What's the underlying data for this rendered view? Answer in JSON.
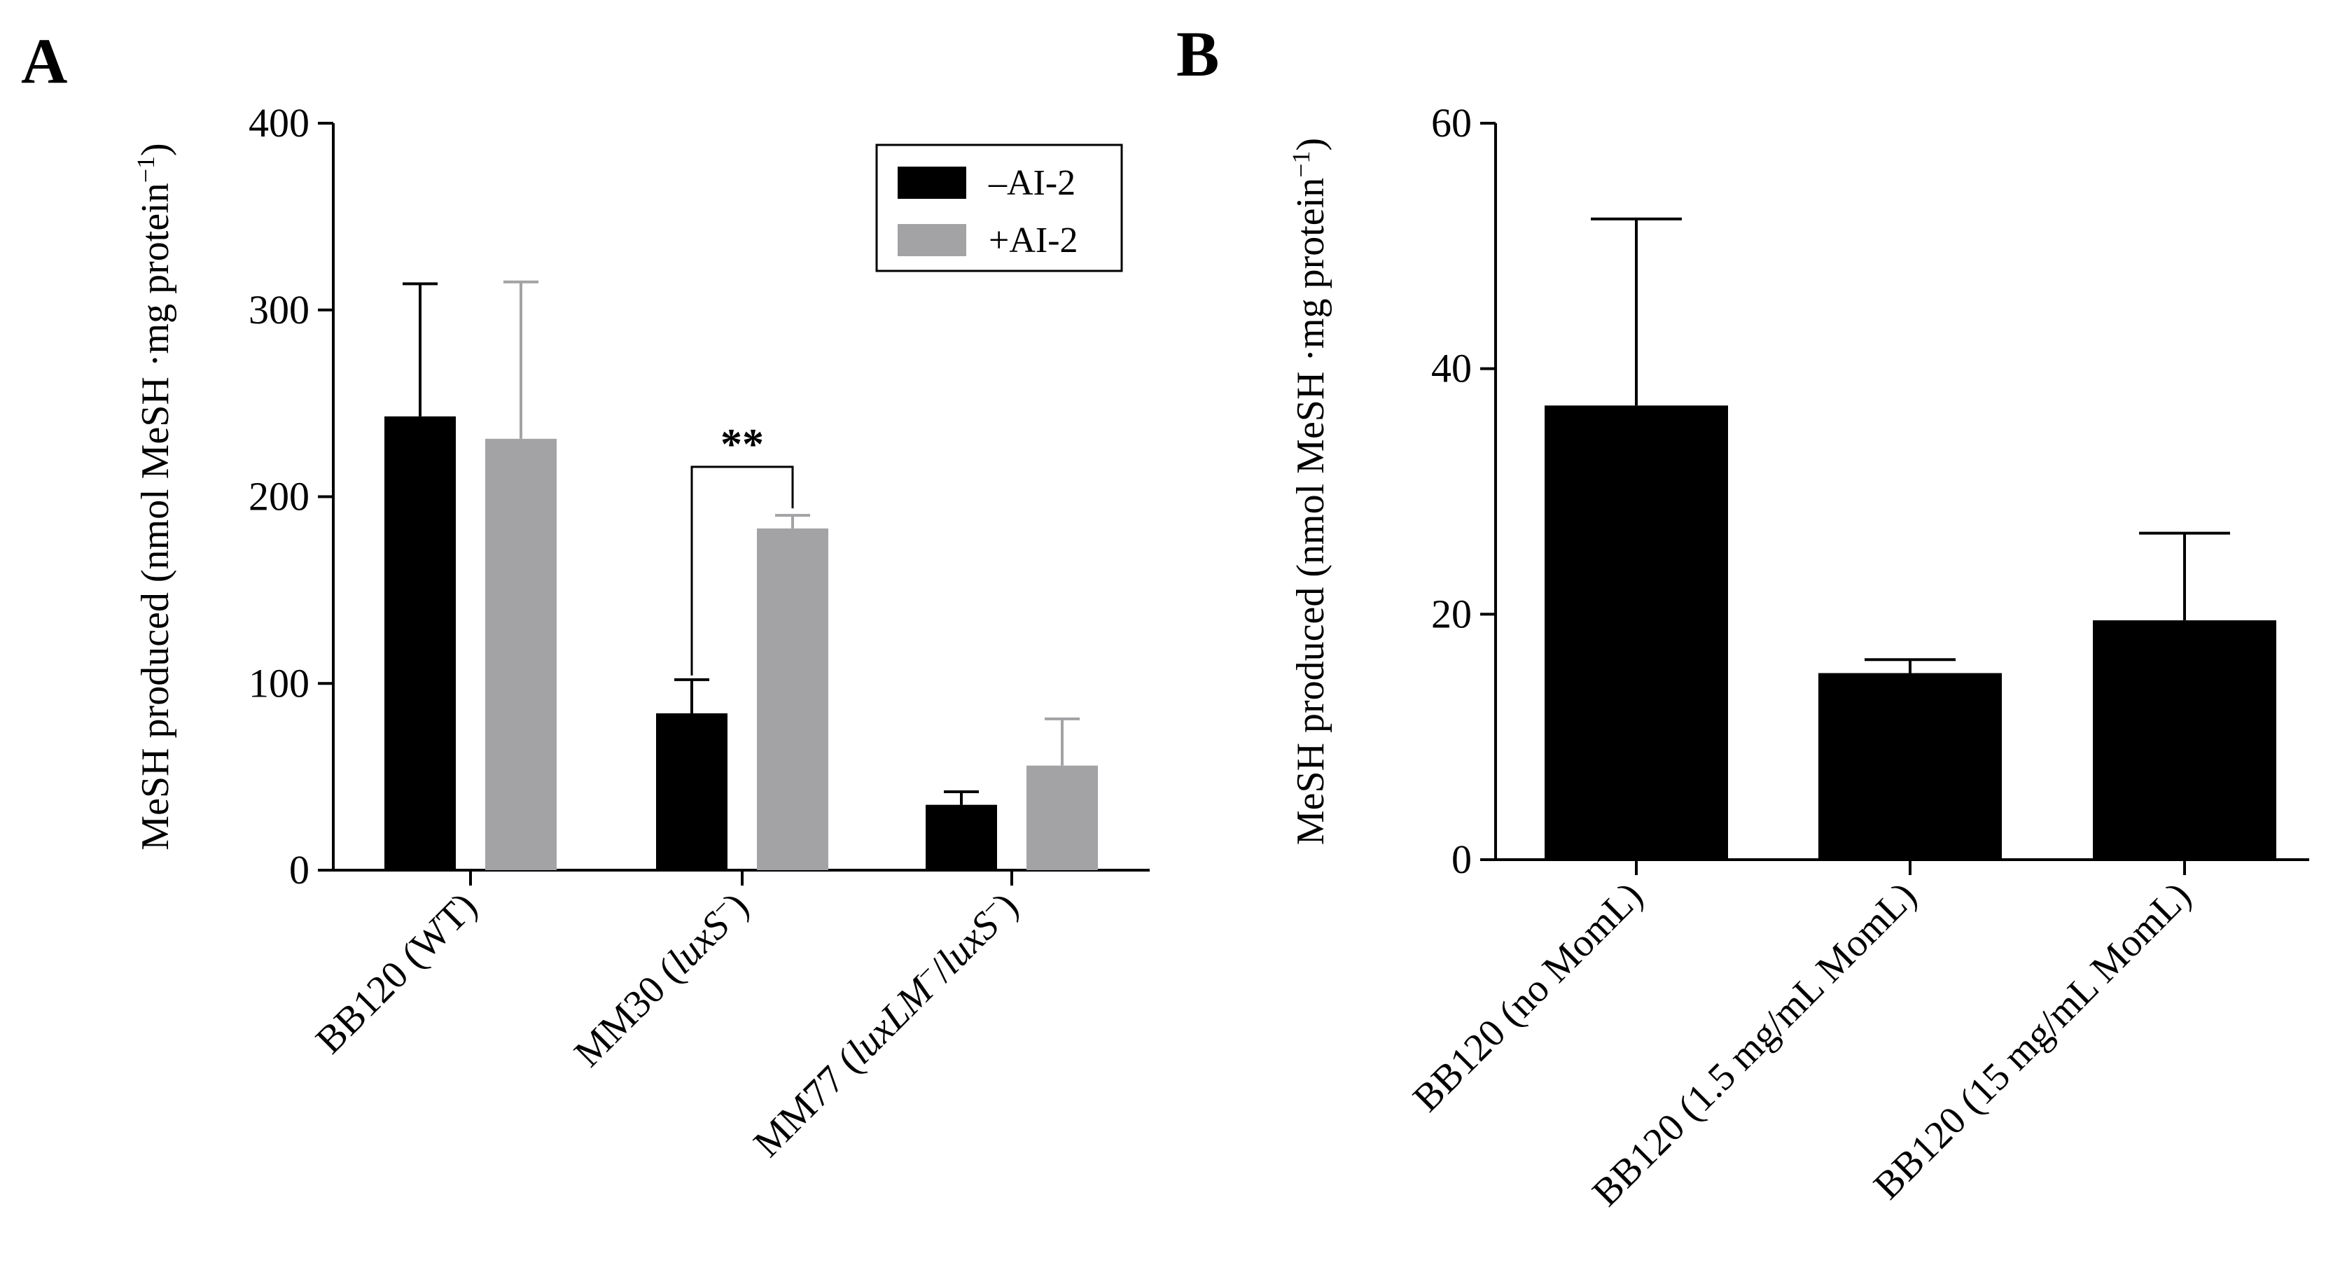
{
  "figure": {
    "panels": [
      "A",
      "B"
    ]
  },
  "chart_data": [
    {
      "panel": "A",
      "type": "bar",
      "title": "",
      "xlabel": "",
      "ylabel": "MeSH produced (nmol MeSH ·mg protein",
      "ylabel_sup": "−1",
      "ylabel_close": ")",
      "ylim": [
        0,
        400
      ],
      "yticks": [
        0,
        100,
        200,
        300,
        400
      ],
      "tick_labels": [
        "0",
        "100",
        "200",
        "300",
        "400"
      ],
      "legend_position": "top-right",
      "categories": [
        {
          "label": "BB120 (WT)",
          "runs": [
            {
              "t": "BB120 (WT)",
              "i": false
            }
          ]
        },
        {
          "label": "MM30 (luxS−)",
          "runs": [
            {
              "t": "MM30 (",
              "i": false
            },
            {
              "t": "luxS",
              "i": true
            },
            {
              "t": "−",
              "sup": true
            },
            {
              "t": ")",
              "i": false
            }
          ]
        },
        {
          "label": "MM77 (luxLM−/luxS−)",
          "runs": [
            {
              "t": "MM77 (",
              "i": false
            },
            {
              "t": "luxLM",
              "i": true
            },
            {
              "t": "−",
              "sup": true
            },
            {
              "t": "/",
              "i": false
            },
            {
              "t": "luxS",
              "i": true
            },
            {
              "t": "−",
              "sup": true
            },
            {
              "t": ")",
              "i": false
            }
          ]
        }
      ],
      "series": [
        {
          "name": "–AI-2",
          "color": "#000000",
          "values": [
            243,
            84,
            35
          ],
          "errors": [
            71,
            18,
            7
          ]
        },
        {
          "name": "+AI-2",
          "color": "#a3a3a6",
          "values": [
            231,
            183,
            56
          ],
          "errors": [
            84,
            7,
            25
          ]
        }
      ],
      "annotations": [
        {
          "text": "**",
          "category_index": 1,
          "between_series": [
            0,
            1
          ]
        }
      ]
    },
    {
      "panel": "B",
      "type": "bar",
      "title": "",
      "xlabel": "",
      "ylabel": "MeSH produced (nmol MeSH ·mg protein",
      "ylabel_sup": "−1",
      "ylabel_close": ")",
      "ylim": [
        0,
        60
      ],
      "yticks": [
        0,
        20,
        40,
        60
      ],
      "tick_labels": [
        "0",
        "20",
        "40",
        "60"
      ],
      "categories": [
        "BB120 (no MomL)",
        "BB120 (1.5 mg/mL MomL)",
        "BB120 (15 mg/mL MomL)"
      ],
      "series": [
        {
          "name": "MeSH",
          "color": "#000000",
          "values": [
            37,
            15.2,
            19.5
          ],
          "errors": [
            15.2,
            1.1,
            7.1
          ]
        }
      ]
    }
  ]
}
